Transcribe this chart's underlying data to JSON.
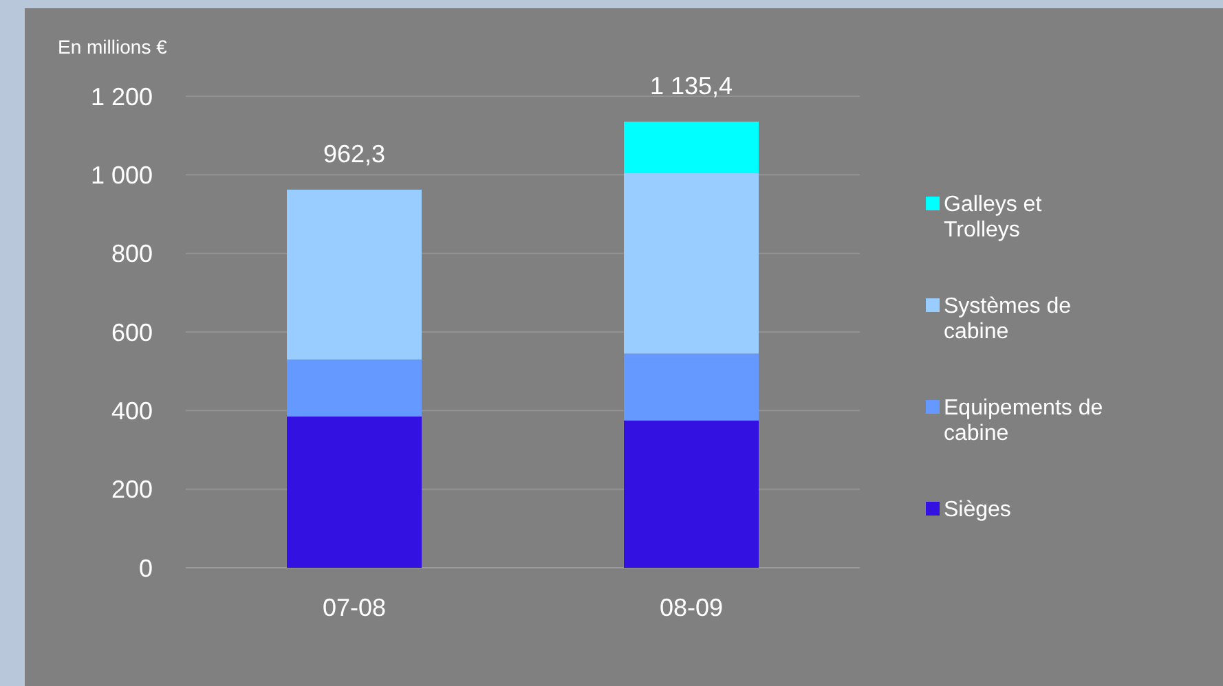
{
  "chart_data": {
    "type": "bar",
    "ylabel": "En millions €",
    "stacked": true,
    "categories": [
      "07-08",
      "08-09"
    ],
    "series": [
      {
        "name": "Sièges",
        "color": "#3311e0",
        "values": [
          385,
          375
        ]
      },
      {
        "name": "Equipements de cabine",
        "color": "#6699ff",
        "values": [
          145,
          170
        ]
      },
      {
        "name": "Systèmes de cabine",
        "color": "#99ccff",
        "values": [
          432.3,
          460.4
        ]
      },
      {
        "name": "Galleys et Trolleys",
        "color": "#00ffff",
        "values": [
          null,
          130
        ]
      }
    ],
    "totals": [
      "962,3",
      "1 135,4"
    ],
    "ylim": [
      0,
      1200
    ],
    "yticks": [
      0,
      200,
      400,
      600,
      800,
      {
        "value": 1000,
        "label": "1 000"
      },
      {
        "value": 1200,
        "label": "1 200"
      }
    ],
    "grid": "y",
    "legend": "right"
  }
}
